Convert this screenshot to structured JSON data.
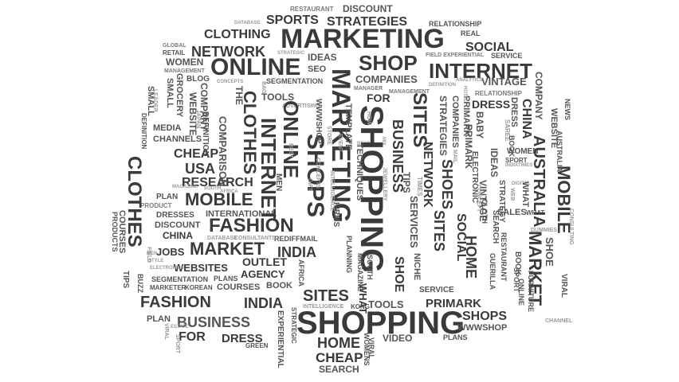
{
  "words": [
    {
      "text": "MARKETING"
    },
    {
      "text": "SHOPPING"
    },
    {
      "text": "SHOPPING"
    },
    {
      "text": "ONLINE"
    },
    {
      "text": "SHOP"
    },
    {
      "text": "INTERNET"
    },
    {
      "text": "STRATEGIES"
    },
    {
      "text": "SPORTS"
    },
    {
      "text": "CLOTHING"
    },
    {
      "text": "NETWORK"
    },
    {
      "text": "SOCIAL"
    },
    {
      "text": "DISCOUNT"
    },
    {
      "text": "RESTAURANT"
    },
    {
      "text": "RELATIONSHIP"
    },
    {
      "text": "REAL"
    },
    {
      "text": "DATABASE"
    },
    {
      "text": "SERVICE"
    },
    {
      "text": "FIELD EXPERIENTIAL"
    },
    {
      "text": "GLOBAL"
    },
    {
      "text": "RETAIL"
    },
    {
      "text": "WOMEN"
    },
    {
      "text": "MANAGEMENT"
    },
    {
      "text": "IDEAS"
    },
    {
      "text": "SEO"
    },
    {
      "text": "COMPANIES"
    },
    {
      "text": "VINTAGE"
    },
    {
      "text": "SEGMENTATION"
    },
    {
      "text": "BLOG"
    },
    {
      "text": "CONCEPTS"
    },
    {
      "text": "TOOLS"
    },
    {
      "text": "MANAGER"
    },
    {
      "text": "MANAGEMENT"
    },
    {
      "text": "FOR"
    },
    {
      "text": "RELATIONSHIP"
    },
    {
      "text": "DRESS"
    },
    {
      "text": "CLOTHES"
    },
    {
      "text": "CHANNELS"
    },
    {
      "text": "MEDIA"
    },
    {
      "text": "CHEAP"
    },
    {
      "text": "USA"
    },
    {
      "text": "RESEARCH"
    },
    {
      "text": "MOBILE"
    },
    {
      "text": "FASHION"
    },
    {
      "text": "DRESSES"
    },
    {
      "text": "INTERNATIONAL"
    },
    {
      "text": "DISCOUNT"
    },
    {
      "text": "PLAN"
    },
    {
      "text": "PRODUCT"
    },
    {
      "text": "CHINA"
    },
    {
      "text": "JOBS"
    },
    {
      "text": "MARKET"
    },
    {
      "text": "INDIA"
    },
    {
      "text": "OUTLET"
    },
    {
      "text": "WEBSITES"
    },
    {
      "text": "AGENCY"
    },
    {
      "text": "REDIFFMAIL"
    },
    {
      "text": "DATABASE"
    },
    {
      "text": "CONSULTANTS"
    },
    {
      "text": "SEGMENTATION"
    },
    {
      "text": "MARKETER"
    },
    {
      "text": "KOREAN"
    },
    {
      "text": "PLANS"
    },
    {
      "text": "COURSES"
    },
    {
      "text": "BOOK"
    },
    {
      "text": "FASHION"
    },
    {
      "text": "INDIA"
    },
    {
      "text": "SITES"
    },
    {
      "text": "BUSINESS"
    },
    {
      "text": "TOOLS"
    },
    {
      "text": "PRIMARK"
    },
    {
      "text": "SHOPS"
    },
    {
      "text": "WWWSHOP"
    },
    {
      "text": "HOME"
    },
    {
      "text": "VIDEO"
    },
    {
      "text": "PLANS"
    },
    {
      "text": "CHEAP"
    },
    {
      "text": "SEARCH"
    },
    {
      "text": "FOR"
    },
    {
      "text": "DRESS"
    },
    {
      "text": "GREEN"
    },
    {
      "text": "PLAN"
    },
    {
      "text": "SERVICE"
    },
    {
      "text": "WOMENS"
    },
    {
      "text": "BOOK"
    },
    {
      "text": "DUMMIES"
    },
    {
      "text": "INDIATIMES"
    },
    {
      "text": "ELECTRONICS"
    },
    {
      "text": "INTELLIGENCE"
    },
    {
      "text": "KONG"
    },
    {
      "text": "SPORT"
    },
    {
      "text": "AUSTRALIA"
    },
    {
      "text": "CLOTHES"
    },
    {
      "text": "INTERNET"
    },
    {
      "text": "ONLINE"
    },
    {
      "text": "SHOPS"
    },
    {
      "text": "BUSINESS"
    },
    {
      "text": "NETWORK"
    },
    {
      "text": "SITES"
    },
    {
      "text": "SHOES"
    },
    {
      "text": "MOBILE"
    },
    {
      "text": "MARKET"
    },
    {
      "text": "AUSTRALIA"
    },
    {
      "text": "COMPANY"
    },
    {
      "text": "WEBSITE"
    },
    {
      "text": "CHINA"
    },
    {
      "text": "HOME"
    },
    {
      "text": "SHOE"
    },
    {
      "text": "SOCIAL"
    },
    {
      "text": "SERVICES"
    },
    {
      "text": "VINTAGE"
    },
    {
      "text": "IDEAS"
    },
    {
      "text": "STRATEGIES"
    },
    {
      "text": "COMPANIES"
    },
    {
      "text": "PRIMARK"
    },
    {
      "text": "SITES"
    },
    {
      "text": "NICHE"
    },
    {
      "text": "WHAT"
    },
    {
      "text": "SHOE"
    },
    {
      "text": "VIRAL"
    },
    {
      "text": "NEWS"
    },
    {
      "text": "CONSULTING"
    },
    {
      "text": "SMALL"
    },
    {
      "text": "DEFINITION"
    },
    {
      "text": "COMPARISON"
    },
    {
      "text": "PRODUCTS"
    },
    {
      "text": "COURSES"
    },
    {
      "text": "TIPS"
    },
    {
      "text": "SMALL"
    },
    {
      "text": "GROCERY"
    },
    {
      "text": "LEADER"
    },
    {
      "text": "WEBSITE"
    },
    {
      "text": "DEFINITION"
    },
    {
      "text": "COMPANY"
    },
    {
      "text": "THE"
    },
    {
      "text": "WWWSHOP"
    },
    {
      "text": "STORE"
    },
    {
      "text": "TEMPLATE"
    },
    {
      "text": "TECHNIQUES"
    },
    {
      "text": "JEWELLERY"
    },
    {
      "text": "TIPS"
    },
    {
      "text": "TIMES"
    },
    {
      "text": "PRIMARK"
    },
    {
      "text": "BABY"
    },
    {
      "text": "SAREE"
    },
    {
      "text": "DRESS"
    },
    {
      "text": "WHAT"
    },
    {
      "text": "SEARCH"
    },
    {
      "text": "SALES"
    },
    {
      "text": "RESTAURANT"
    },
    {
      "text": "WOMEN"
    },
    {
      "text": "SPORT"
    },
    {
      "text": "GUERILLA"
    },
    {
      "text": "BOOK"
    },
    {
      "text": "FIRMS"
    },
    {
      "text": "PLANNING"
    },
    {
      "text": "MAGAZINE"
    },
    {
      "text": "SOUTH"
    },
    {
      "text": "AFRICA"
    },
    {
      "text": "STRATEGIC"
    },
    {
      "text": "MEN"
    },
    {
      "text": "STYLE"
    },
    {
      "text": "ANALYTICS"
    },
    {
      "text": "GIFT"
    },
    {
      "text": "EXPERIENTIAL"
    },
    {
      "text": "ADVERTISING"
    },
    {
      "text": "FIELD"
    },
    {
      "text": "BUZZ"
    },
    {
      "text": "MAIL"
    },
    {
      "text": "ELECTRONIC"
    },
    {
      "text": "STRATEGY"
    },
    {
      "text": "VIRAL"
    },
    {
      "text": "JAPAN"
    },
    {
      "text": "DEFINITION"
    },
    {
      "text": "CONCEPTS"
    },
    {
      "text": "INTELLIGENCE"
    },
    {
      "text": "EVENT"
    },
    {
      "text": "BEST"
    },
    {
      "text": "BAG"
    },
    {
      "text": "HOW"
    },
    {
      "text": "MIX"
    },
    {
      "text": "HOTEL"
    },
    {
      "text": "DIGITAL"
    },
    {
      "text": "CHANNEL"
    },
    {
      "text": "WEB"
    },
    {
      "text": "CONCEPT"
    },
    {
      "text": "FURNITURE"
    },
    {
      "text": "ESTATE"
    },
    {
      "text": "ONLINE"
    },
    {
      "text": "CLOTH"
    },
    {
      "text": "VIRAL"
    },
    {
      "text": "SPORT"
    },
    {
      "text": "SHOE"
    },
    {
      "text": "PRIMARK"
    },
    {
      "text": "WOMENS"
    },
    {
      "text": "JAPAN"
    }
  ]
}
